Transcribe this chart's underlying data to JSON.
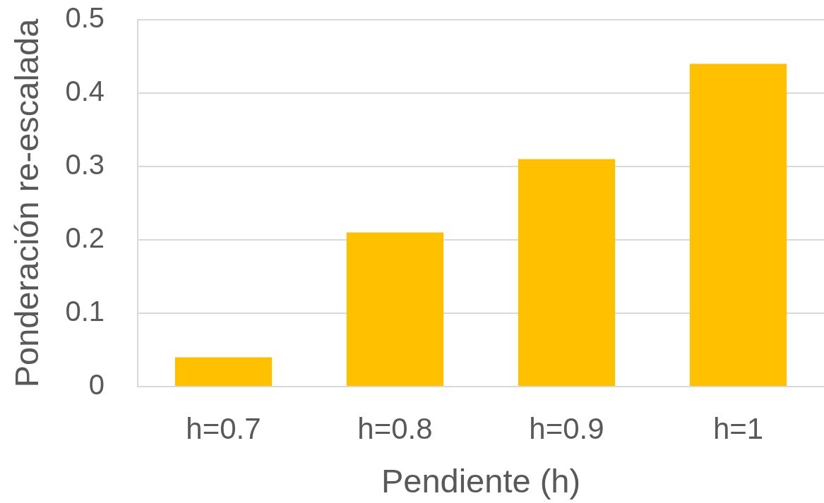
{
  "chart_data": {
    "type": "bar",
    "xlabel": "Pendiente (h)",
    "ylabel": "Ponderación re-escalada",
    "categories": [
      "h=0.7",
      "h=0.8",
      "h=0.9",
      "h=1"
    ],
    "values": [
      0.04,
      0.21,
      0.31,
      0.44
    ],
    "color": "#ffc000",
    "ylim": [
      0,
      0.5
    ],
    "yticks": [
      0,
      0.1,
      0.2,
      0.3,
      0.4,
      0.5
    ],
    "grid": "y"
  }
}
